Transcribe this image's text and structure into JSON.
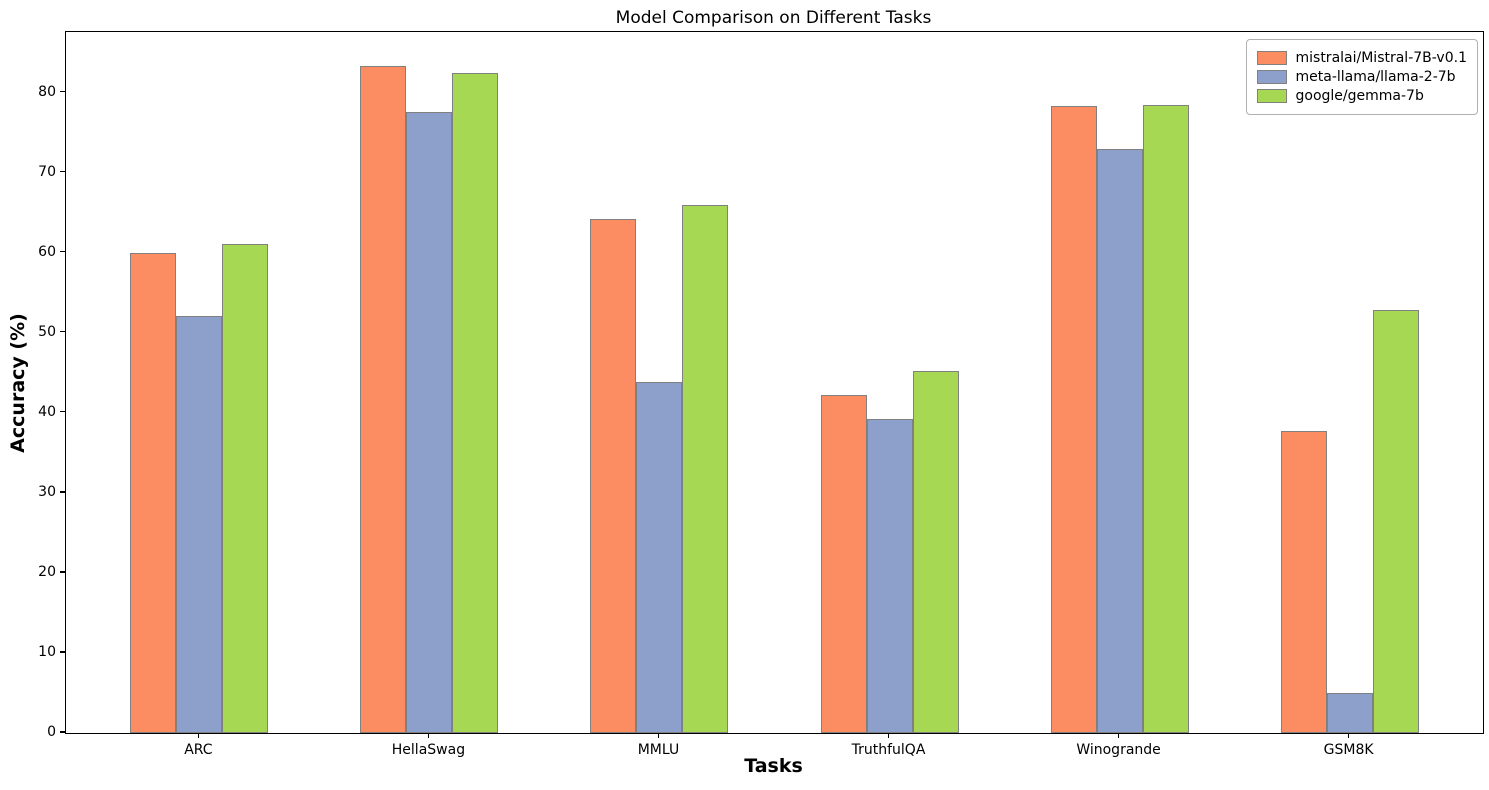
{
  "title": "Model Comparison on Different Tasks",
  "xlabel": "Tasks",
  "ylabel": "Accuracy (%)",
  "chart_data": {
    "type": "bar",
    "title": "Model Comparison on Different Tasks",
    "xlabel": "Tasks",
    "ylabel": "Accuracy (%)",
    "categories": [
      "ARC",
      "HellaSwag",
      "MMLU",
      "TruthfulQA",
      "Winogrande",
      "GSM8K"
    ],
    "series": [
      {
        "name": "mistralai/Mistral-7B-v0.1",
        "color": "#FC8D62",
        "values": [
          60.0,
          83.3,
          64.2,
          42.2,
          78.4,
          37.8
        ]
      },
      {
        "name": "meta-llama/llama-2-7b",
        "color": "#8DA0CB",
        "values": [
          52.1,
          77.6,
          43.9,
          39.3,
          73.0,
          5.0
        ]
      },
      {
        "name": "google/gemma-7b",
        "color": "#A6D854",
        "values": [
          61.1,
          82.5,
          66.0,
          45.3,
          78.5,
          52.8
        ]
      }
    ],
    "y_ticks": [
      0,
      10,
      20,
      30,
      40,
      50,
      60,
      70,
      80
    ],
    "ylim": [
      0,
      87.6
    ],
    "bar_edge_color": "#808080",
    "axis_color": "#000000",
    "legend_position": "upper right",
    "grid": false
  }
}
